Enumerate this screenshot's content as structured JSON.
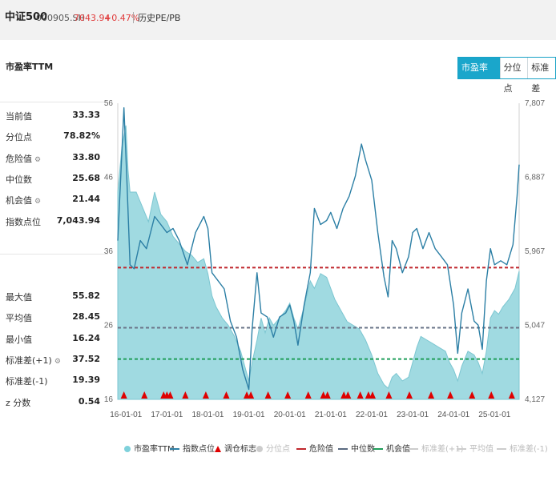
{
  "header": {
    "name": "中证500",
    "code": "000905.SH",
    "price": "7043.94",
    "change": "+0.47%",
    "history_button": "历史PE/PB"
  },
  "section_title": "市盈率TTM",
  "tabs": [
    {
      "label": "市盈率TTM",
      "active": true
    },
    {
      "label": "分位点",
      "active": false
    },
    {
      "label": "标准差",
      "active": false
    }
  ],
  "stats_top": [
    {
      "label": "当前值",
      "value": "33.33",
      "gear": false
    },
    {
      "label": "分位点",
      "value": "78.82%",
      "gear": false
    },
    {
      "label": "危险值",
      "value": "33.80",
      "gear": true
    },
    {
      "label": "中位数",
      "value": "25.68",
      "gear": false
    },
    {
      "label": "机会值",
      "value": "21.44",
      "gear": true
    },
    {
      "label": "指数点位",
      "value": "7,043.94",
      "gear": false
    }
  ],
  "stats_bottom": [
    {
      "label": "最大值",
      "value": "55.82",
      "gear": false
    },
    {
      "label": "平均值",
      "value": "28.45",
      "gear": false
    },
    {
      "label": "最小值",
      "value": "16.24",
      "gear": false
    },
    {
      "label": "标准差(+1)",
      "value": "37.52",
      "gear": true
    },
    {
      "label": "标准差(-1)",
      "value": "19.39",
      "gear": false
    },
    {
      "label": "z 分数",
      "value": "0.54",
      "gear": false
    }
  ],
  "legend": [
    {
      "label": "市盈率TTM",
      "type": "dot",
      "color": "#7fd1db",
      "muted": false
    },
    {
      "label": "指数点位",
      "type": "line",
      "color": "#2c7fa5",
      "muted": false
    },
    {
      "label": "调仓标志",
      "type": "tri",
      "color": "#e00000",
      "muted": false
    },
    {
      "label": "分位点",
      "type": "dot",
      "color": "#cccccc",
      "muted": true
    },
    {
      "label": "危险值",
      "type": "dash",
      "color": "#c0272d",
      "muted": false
    },
    {
      "label": "中位数",
      "type": "dash",
      "color": "#5a6a80",
      "muted": false
    },
    {
      "label": "机会值",
      "type": "dash",
      "color": "#1f9e5a",
      "muted": false
    },
    {
      "label": "标准差(+1)",
      "type": "dash",
      "color": "#cccccc",
      "muted": true
    },
    {
      "label": "平均值",
      "type": "dash",
      "color": "#cccccc",
      "muted": true
    },
    {
      "label": "标准差(-1)",
      "type": "dash",
      "color": "#cccccc",
      "muted": true
    }
  ],
  "chart_data": {
    "type": "area",
    "x_ticks": [
      "16-01-01",
      "17-01-01",
      "18-01-01",
      "19-01-01",
      "20-01-01",
      "21-01-01",
      "22-01-01",
      "23-01-01",
      "24-01-01",
      "25-01-01"
    ],
    "x_range": [
      2015.8,
      2025.6
    ],
    "y_left_ticks": [
      "16",
      "26",
      "36",
      "46",
      "56"
    ],
    "y_left_range": [
      16,
      56
    ],
    "y_right_ticks": [
      "4,127",
      "5,047",
      "5,967",
      "6,887",
      "7,807"
    ],
    "y_right_range": [
      4127,
      7807
    ],
    "reference_lines": {
      "danger": 33.8,
      "median": 25.68,
      "opportunity": 21.44
    },
    "pe_series": [
      [
        2015.8,
        44
      ],
      [
        2015.9,
        50
      ],
      [
        2016.0,
        53
      ],
      [
        2016.05,
        47
      ],
      [
        2016.1,
        44
      ],
      [
        2016.25,
        44
      ],
      [
        2016.4,
        42
      ],
      [
        2016.55,
        40
      ],
      [
        2016.7,
        44
      ],
      [
        2016.85,
        41
      ],
      [
        2017.0,
        40
      ],
      [
        2017.15,
        38
      ],
      [
        2017.3,
        37
      ],
      [
        2017.45,
        36
      ],
      [
        2017.6,
        35.5
      ],
      [
        2017.75,
        34.5
      ],
      [
        2017.9,
        35
      ],
      [
        2018.0,
        33
      ],
      [
        2018.1,
        30
      ],
      [
        2018.2,
        28.5
      ],
      [
        2018.35,
        27
      ],
      [
        2018.5,
        26
      ],
      [
        2018.65,
        24.5
      ],
      [
        2018.8,
        22.5
      ],
      [
        2018.95,
        19.5
      ],
      [
        2019.0,
        18.5
      ],
      [
        2019.08,
        21
      ],
      [
        2019.2,
        24
      ],
      [
        2019.3,
        27
      ],
      [
        2019.4,
        25
      ],
      [
        2019.5,
        27
      ],
      [
        2019.6,
        26
      ],
      [
        2019.75,
        27
      ],
      [
        2019.9,
        28
      ],
      [
        2020.0,
        29
      ],
      [
        2020.1,
        27
      ],
      [
        2020.2,
        25.5
      ],
      [
        2020.35,
        28.5
      ],
      [
        2020.5,
        32
      ],
      [
        2020.6,
        31
      ],
      [
        2020.75,
        33
      ],
      [
        2020.9,
        32.5
      ],
      [
        2021.0,
        31
      ],
      [
        2021.1,
        29.5
      ],
      [
        2021.25,
        28
      ],
      [
        2021.4,
        26.5
      ],
      [
        2021.55,
        26
      ],
      [
        2021.7,
        25.5
      ],
      [
        2021.85,
        24
      ],
      [
        2022.0,
        22
      ],
      [
        2022.15,
        19.5
      ],
      [
        2022.3,
        18
      ],
      [
        2022.4,
        17.5
      ],
      [
        2022.5,
        19
      ],
      [
        2022.6,
        19.5
      ],
      [
        2022.75,
        18.5
      ],
      [
        2022.9,
        19
      ],
      [
        2023.0,
        21
      ],
      [
        2023.1,
        23
      ],
      [
        2023.2,
        24.5
      ],
      [
        2023.35,
        24
      ],
      [
        2023.5,
        23.5
      ],
      [
        2023.65,
        23
      ],
      [
        2023.8,
        22.5
      ],
      [
        2023.9,
        21
      ],
      [
        2024.0,
        20
      ],
      [
        2024.1,
        18.5
      ],
      [
        2024.2,
        20.5
      ],
      [
        2024.35,
        22.5
      ],
      [
        2024.5,
        22
      ],
      [
        2024.6,
        21
      ],
      [
        2024.7,
        19.5
      ],
      [
        2024.8,
        22.5
      ],
      [
        2024.9,
        27
      ],
      [
        2025.0,
        28
      ],
      [
        2025.1,
        27.5
      ],
      [
        2025.2,
        28.5
      ],
      [
        2025.35,
        29.5
      ],
      [
        2025.5,
        31
      ],
      [
        2025.6,
        33.33
      ]
    ],
    "index_series": [
      [
        2015.8,
        6100
      ],
      [
        2015.95,
        7750
      ],
      [
        2016.02,
        6900
      ],
      [
        2016.1,
        5800
      ],
      [
        2016.2,
        5750
      ],
      [
        2016.35,
        6100
      ],
      [
        2016.5,
        6000
      ],
      [
        2016.7,
        6400
      ],
      [
        2016.85,
        6300
      ],
      [
        2017.0,
        6200
      ],
      [
        2017.15,
        6250
      ],
      [
        2017.3,
        6100
      ],
      [
        2017.5,
        5800
      ],
      [
        2017.7,
        6200
      ],
      [
        2017.9,
        6400
      ],
      [
        2018.0,
        6250
      ],
      [
        2018.1,
        5700
      ],
      [
        2018.25,
        5600
      ],
      [
        2018.4,
        5500
      ],
      [
        2018.55,
        5100
      ],
      [
        2018.7,
        4900
      ],
      [
        2018.85,
        4500
      ],
      [
        2019.0,
        4250
      ],
      [
        2019.08,
        5000
      ],
      [
        2019.2,
        5700
      ],
      [
        2019.3,
        5200
      ],
      [
        2019.45,
        5150
      ],
      [
        2019.6,
        4900
      ],
      [
        2019.75,
        5150
      ],
      [
        2019.9,
        5200
      ],
      [
        2020.0,
        5300
      ],
      [
        2020.1,
        5100
      ],
      [
        2020.2,
        4800
      ],
      [
        2020.35,
        5300
      ],
      [
        2020.5,
        5700
      ],
      [
        2020.6,
        6500
      ],
      [
        2020.75,
        6300
      ],
      [
        2020.9,
        6350
      ],
      [
        2021.0,
        6450
      ],
      [
        2021.15,
        6250
      ],
      [
        2021.3,
        6500
      ],
      [
        2021.45,
        6650
      ],
      [
        2021.6,
        6900
      ],
      [
        2021.75,
        7300
      ],
      [
        2021.85,
        7100
      ],
      [
        2022.0,
        6850
      ],
      [
        2022.15,
        6200
      ],
      [
        2022.3,
        5650
      ],
      [
        2022.4,
        5400
      ],
      [
        2022.5,
        6100
      ],
      [
        2022.6,
        6000
      ],
      [
        2022.75,
        5700
      ],
      [
        2022.9,
        5900
      ],
      [
        2023.0,
        6200
      ],
      [
        2023.1,
        6250
      ],
      [
        2023.25,
        6000
      ],
      [
        2023.4,
        6200
      ],
      [
        2023.55,
        6000
      ],
      [
        2023.7,
        5900
      ],
      [
        2023.85,
        5800
      ],
      [
        2024.0,
        5300
      ],
      [
        2024.1,
        4700
      ],
      [
        2024.2,
        5200
      ],
      [
        2024.35,
        5500
      ],
      [
        2024.5,
        5100
      ],
      [
        2024.6,
        5050
      ],
      [
        2024.7,
        4750
      ],
      [
        2024.8,
        5600
      ],
      [
        2024.9,
        6000
      ],
      [
        2025.0,
        5800
      ],
      [
        2025.15,
        5850
      ],
      [
        2025.3,
        5800
      ],
      [
        2025.45,
        6050
      ],
      [
        2025.55,
        6650
      ],
      [
        2025.6,
        7043.94
      ]
    ],
    "rebalance_markers": [
      2015.95,
      2016.45,
      2016.92,
      2017.0,
      2017.08,
      2017.45,
      2017.95,
      2018.45,
      2018.95,
      2019.05,
      2019.47,
      2019.95,
      2020.45,
      2020.82,
      2020.92,
      2021.32,
      2021.42,
      2021.72,
      2021.92,
      2022.02,
      2022.42,
      2022.92,
      2023.45,
      2023.92,
      2024.45,
      2024.92,
      2025.42
    ]
  }
}
